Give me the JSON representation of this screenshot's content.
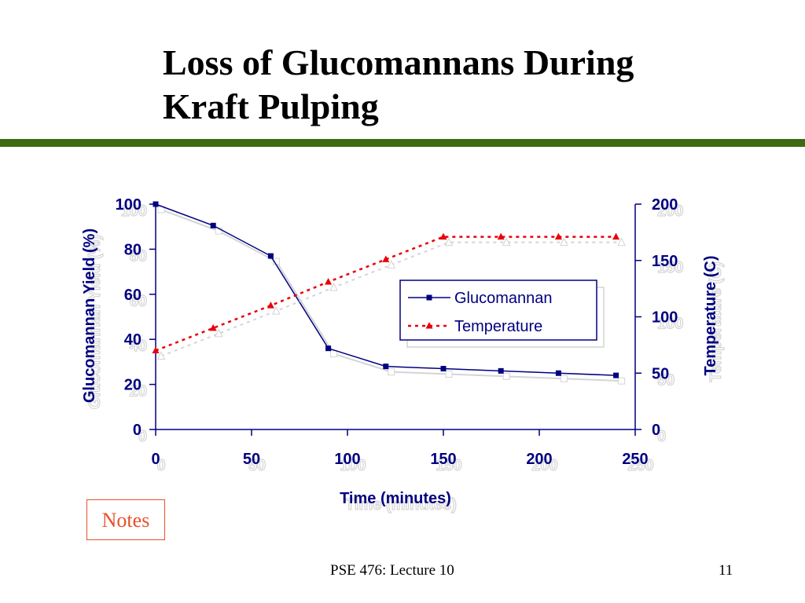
{
  "slide": {
    "title_line1": "Loss of Glucomannans During",
    "title_line2": "Kraft Pulping",
    "notes_label": "Notes",
    "footer_left": "PSE 476: Lecture 10",
    "footer_right": "11"
  },
  "colors": {
    "rule": "#3d6a12",
    "navy": "#000080",
    "red": "#e8000b",
    "notes": "#e8502a",
    "shadow": "#d4d4d4"
  },
  "chart_data": {
    "type": "line",
    "xlabel": "Time (minutes)",
    "ylabel_left": "Glucomannan Yield (%)",
    "ylabel_right": "Temperature (C)",
    "xlim": [
      0,
      250
    ],
    "ylim_left": [
      0,
      100
    ],
    "ylim_right": [
      0,
      200
    ],
    "x_ticks": [
      "0",
      "50",
      "100",
      "150",
      "200",
      "250"
    ],
    "y_left_ticks": [
      "0",
      "20",
      "40",
      "60",
      "80",
      "100"
    ],
    "y_right_ticks": [
      "0",
      "50",
      "100",
      "150",
      "200"
    ],
    "legend": "center-right",
    "series": [
      {
        "name": "Glucomannan",
        "axis": "left",
        "marker": "square",
        "color": "#000080",
        "x": [
          0,
          30,
          60,
          90,
          120,
          150,
          180,
          210,
          240
        ],
        "y": [
          100,
          90.5,
          77,
          36,
          28,
          27,
          26,
          25,
          24
        ]
      },
      {
        "name": "Temperature",
        "axis": "right",
        "marker": "triangle",
        "color": "#e8000b",
        "x": [
          0,
          30,
          60,
          90,
          120,
          150,
          180,
          210,
          240
        ],
        "y": [
          70,
          90,
          110,
          131,
          151,
          171,
          171,
          171,
          171
        ]
      }
    ]
  }
}
